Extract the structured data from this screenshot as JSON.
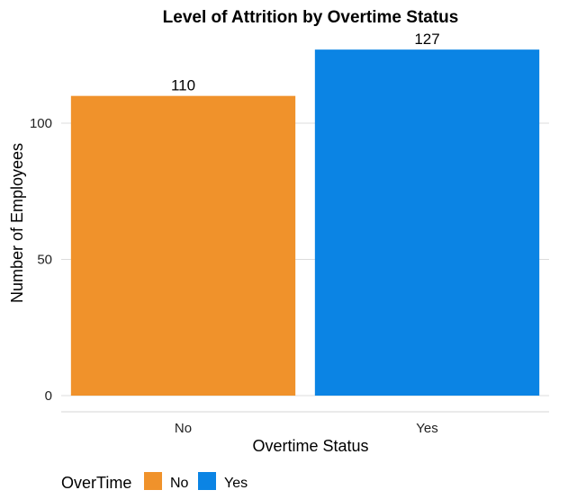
{
  "chart_data": {
    "type": "bar",
    "title": "Level of Attrition by Overtime Status",
    "xlabel": "Overtime Status",
    "ylabel": "Number of Employees",
    "categories": [
      "No",
      "Yes"
    ],
    "values": [
      110,
      127
    ],
    "data_labels": [
      "110",
      "127"
    ],
    "colors": [
      "#F0922B",
      "#0B84E4"
    ],
    "ylim": [
      0,
      132
    ],
    "yticks": [
      0,
      50,
      100
    ],
    "grid": true,
    "legend": {
      "title": "OverTime",
      "position": "bottom-left",
      "entries": [
        {
          "label": "No",
          "color": "#F0922B"
        },
        {
          "label": "Yes",
          "color": "#0B84E4"
        }
      ]
    }
  }
}
